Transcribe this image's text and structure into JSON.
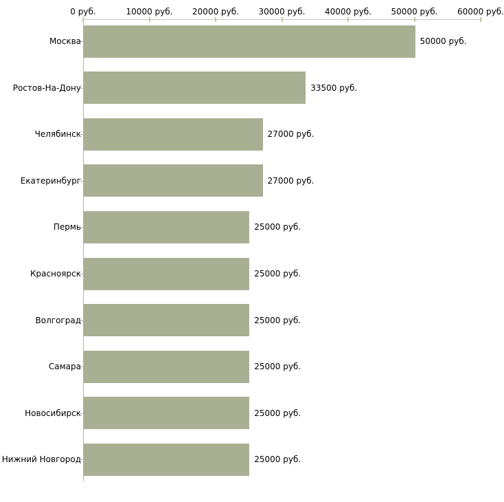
{
  "chart_data": {
    "type": "bar",
    "orientation": "horizontal",
    "title": "",
    "xlabel": "",
    "ylabel": "",
    "xlim": [
      0,
      60000
    ],
    "grid": "off",
    "legend": "none",
    "x_tick_values": [
      0,
      10000,
      20000,
      30000,
      40000,
      50000,
      60000
    ],
    "x_tick_labels": [
      "0 руб.",
      "10000 руб.",
      "20000 руб.",
      "30000 руб.",
      "40000 руб.",
      "50000 руб.",
      "60000 руб."
    ],
    "categories": [
      "Москва",
      "Ростов-На-Дону",
      "Челябинск",
      "Екатеринбург",
      "Пермь",
      "Красноярск",
      "Волгоград",
      "Самара",
      "Новосибирск",
      "Нижний Новгород"
    ],
    "values": [
      50000,
      33500,
      27000,
      27000,
      25000,
      25000,
      25000,
      25000,
      25000,
      25000
    ],
    "value_labels": [
      "50000 руб.",
      "33500 руб.",
      "27000 руб.",
      "27000 руб.",
      "25000 руб.",
      "25000 руб.",
      "25000 руб.",
      "25000 руб.",
      "25000 руб.",
      "25000 руб."
    ],
    "colors": {
      "bar": "#a9af93",
      "x_axis_line": "#c3c3c3",
      "y_axis_line": "#b0b0b0",
      "x_tick_mark": "#c6c6a8",
      "category_tick": "#b0b0b0",
      "text": "#000000",
      "background": "#ffffff"
    }
  }
}
